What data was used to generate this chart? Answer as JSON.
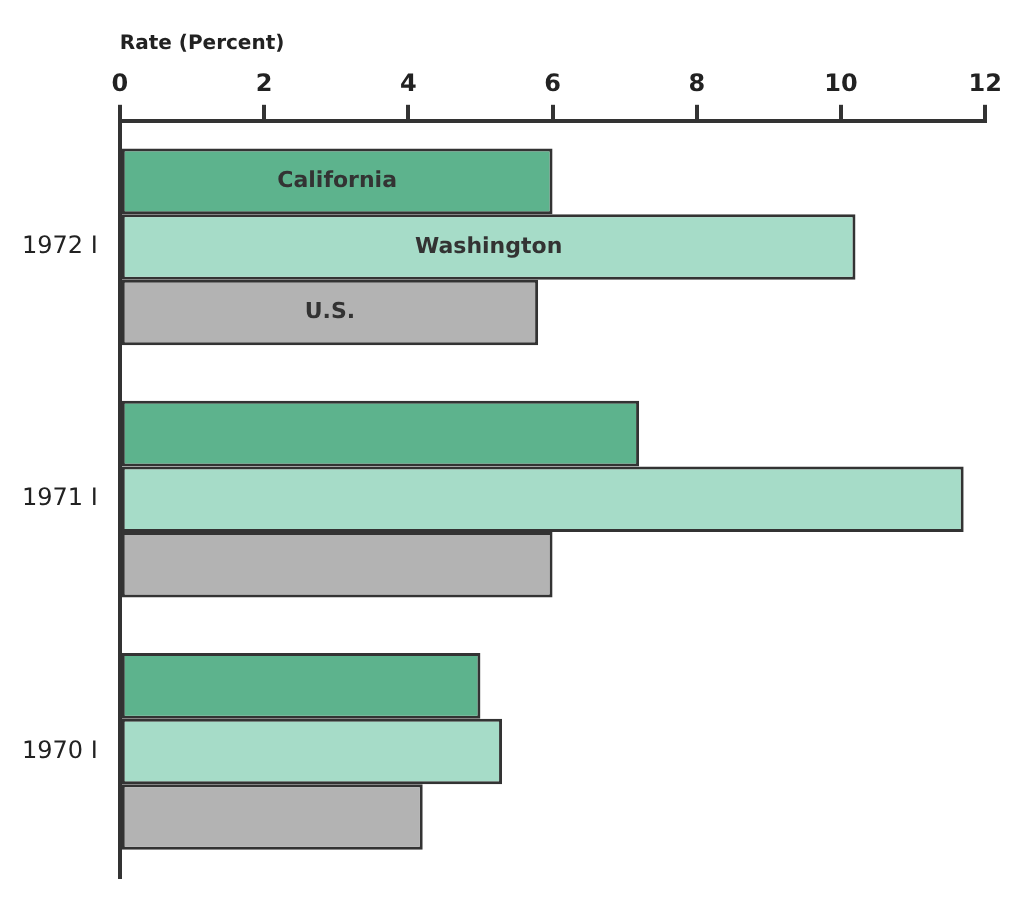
{
  "chart_data": {
    "type": "bar",
    "orientation": "horizontal",
    "xlabel": "Rate (Percent)",
    "categories": [
      "1972 I",
      "1971 I",
      "1970 I"
    ],
    "series": [
      {
        "name": "California",
        "color": "#5db38d",
        "values": [
          6.0,
          7.2,
          5.0
        ]
      },
      {
        "name": "Washington",
        "color": "#a6dcc8",
        "values": [
          10.2,
          11.7,
          5.3
        ]
      },
      {
        "name": "U.S.",
        "color": "#b3b3b3",
        "values": [
          5.8,
          6.0,
          4.2
        ]
      }
    ],
    "xlim": [
      0,
      12
    ],
    "xticks": [
      0,
      2,
      4,
      6,
      8,
      10,
      12
    ],
    "grid": false,
    "legend": false
  }
}
